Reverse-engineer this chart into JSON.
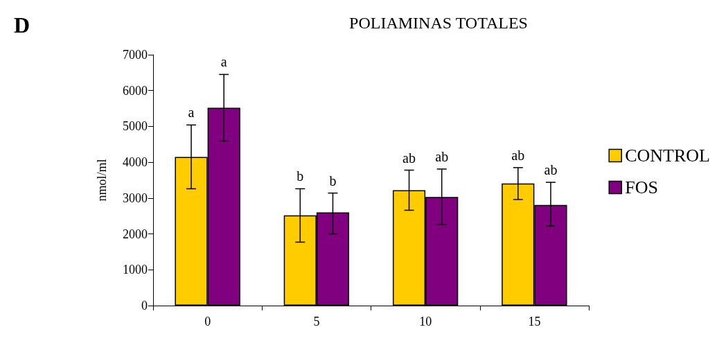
{
  "chart_data": {
    "type": "bar",
    "title": "POLIAMINAS TOTALES",
    "ylabel": "nmol/ml",
    "annotations": [
      "D"
    ],
    "categories": [
      "0",
      "5",
      "10",
      "15"
    ],
    "series": [
      {
        "name": "CONTROL",
        "color": "#ffcc00",
        "values": [
          4150,
          2520,
          3220,
          3410
        ],
        "errors": [
          [
            3260,
            5040
          ],
          [
            1770,
            3260
          ],
          [
            2660,
            3780
          ],
          [
            2960,
            3850
          ]
        ],
        "value_labels": [
          "a",
          "b",
          "ab",
          "ab"
        ]
      },
      {
        "name": "FOS",
        "color": "#800080",
        "values": [
          5520,
          2600,
          3030,
          2810
        ],
        "errors": [
          [
            4590,
            6450
          ],
          [
            2000,
            3140
          ],
          [
            2260,
            3810
          ],
          [
            2220,
            3440
          ]
        ],
        "value_labels": [
          "a",
          "b",
          "ab",
          "ab"
        ]
      }
    ],
    "ylim": [
      0,
      7000
    ],
    "yticks": [
      0,
      1000,
      2000,
      3000,
      4000,
      5000,
      6000,
      7000
    ],
    "grid": false,
    "legend": "right"
  }
}
